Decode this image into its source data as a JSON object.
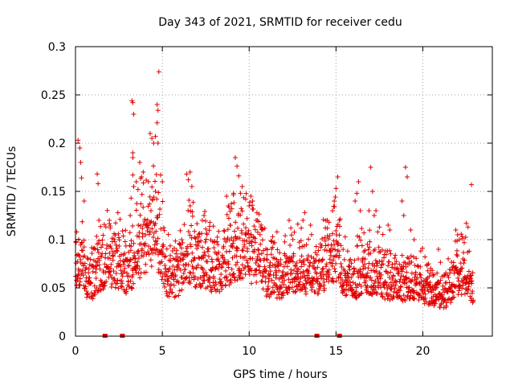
{
  "chart_data": {
    "type": "scatter",
    "title": "Day 343 of 2021, SRMTID for receiver cedu",
    "xlabel": "GPS time / hours",
    "ylabel": "SRMTID / TECUs",
    "xlim": [
      0,
      24
    ],
    "ylim": [
      0,
      0.3
    ],
    "x_ticks": [
      0,
      5,
      10,
      15,
      20
    ],
    "x_tick_labels": [
      "0",
      "5",
      "10",
      "15",
      "20"
    ],
    "y_ticks": [
      0,
      0.05,
      0.1,
      0.15,
      0.2,
      0.25,
      0.3
    ],
    "y_tick_labels": [
      "0",
      "0.05",
      "0.1",
      "0.15",
      "0.2",
      "0.25",
      "0.3"
    ],
    "grid": true,
    "marker": "+",
    "series_color": "#e00000",
    "gap_marker_times": [
      1.7,
      2.7,
      13.9,
      15.2
    ],
    "trend": [
      [
        0.0,
        0.07
      ],
      [
        0.3,
        0.078
      ],
      [
        0.6,
        0.065
      ],
      [
        1.0,
        0.06
      ],
      [
        1.4,
        0.075
      ],
      [
        2.0,
        0.08
      ],
      [
        2.5,
        0.078
      ],
      [
        3.0,
        0.07
      ],
      [
        3.5,
        0.088
      ],
      [
        4.0,
        0.105
      ],
      [
        4.5,
        0.11
      ],
      [
        4.9,
        0.1
      ],
      [
        5.3,
        0.065
      ],
      [
        5.9,
        0.065
      ],
      [
        6.4,
        0.09
      ],
      [
        6.9,
        0.082
      ],
      [
        7.5,
        0.078
      ],
      [
        8.0,
        0.07
      ],
      [
        8.5,
        0.075
      ],
      [
        9.0,
        0.09
      ],
      [
        9.5,
        0.092
      ],
      [
        10.0,
        0.09
      ],
      [
        10.6,
        0.08
      ],
      [
        11.0,
        0.065
      ],
      [
        11.6,
        0.06
      ],
      [
        12.2,
        0.068
      ],
      [
        12.8,
        0.07
      ],
      [
        13.3,
        0.07
      ],
      [
        13.9,
        0.067
      ],
      [
        14.5,
        0.08
      ],
      [
        15.0,
        0.09
      ],
      [
        15.5,
        0.065
      ],
      [
        16.0,
        0.06
      ],
      [
        16.5,
        0.07
      ],
      [
        17.0,
        0.068
      ],
      [
        17.6,
        0.062
      ],
      [
        18.2,
        0.06
      ],
      [
        18.8,
        0.058
      ],
      [
        19.3,
        0.06
      ],
      [
        19.8,
        0.055
      ],
      [
        20.3,
        0.052
      ],
      [
        20.8,
        0.048
      ],
      [
        21.3,
        0.045
      ],
      [
        21.8,
        0.06
      ],
      [
        22.2,
        0.07
      ],
      [
        22.6,
        0.06
      ],
      [
        22.9,
        0.055
      ]
    ],
    "spikes": [
      [
        0.15,
        0.203
      ],
      [
        0.25,
        0.195
      ],
      [
        0.3,
        0.18
      ],
      [
        0.35,
        0.164
      ],
      [
        0.5,
        0.14
      ],
      [
        1.25,
        0.168
      ],
      [
        1.3,
        0.158
      ],
      [
        1.35,
        0.12
      ],
      [
        1.95,
        0.12
      ],
      [
        2.0,
        0.112
      ],
      [
        3.2,
        0.143
      ],
      [
        3.3,
        0.167
      ],
      [
        3.35,
        0.155
      ],
      [
        3.15,
        0.125
      ],
      [
        3.25,
        0.244
      ],
      [
        3.3,
        0.242
      ],
      [
        3.35,
        0.23
      ],
      [
        3.3,
        0.19
      ],
      [
        3.3,
        0.185
      ],
      [
        3.5,
        0.16
      ],
      [
        3.6,
        0.152
      ],
      [
        3.8,
        0.165
      ],
      [
        3.9,
        0.17
      ],
      [
        3.7,
        0.18
      ],
      [
        4.3,
        0.21
      ],
      [
        4.4,
        0.205
      ],
      [
        4.5,
        0.2
      ],
      [
        4.6,
        0.207
      ],
      [
        4.7,
        0.24
      ],
      [
        4.75,
        0.234
      ],
      [
        4.7,
        0.221
      ],
      [
        4.8,
        0.274
      ],
      [
        4.75,
        0.2
      ],
      [
        4.9,
        0.167
      ],
      [
        5.0,
        0.16
      ],
      [
        4.6,
        0.15
      ],
      [
        4.2,
        0.16
      ],
      [
        6.4,
        0.168
      ],
      [
        6.5,
        0.162
      ],
      [
        6.6,
        0.17
      ],
      [
        6.7,
        0.155
      ],
      [
        6.6,
        0.135
      ],
      [
        7.3,
        0.12
      ],
      [
        7.4,
        0.125
      ],
      [
        7.5,
        0.111
      ],
      [
        8.7,
        0.145
      ],
      [
        8.8,
        0.135
      ],
      [
        8.9,
        0.115
      ],
      [
        9.0,
        0.132
      ],
      [
        9.1,
        0.148
      ],
      [
        9.2,
        0.185
      ],
      [
        9.3,
        0.176
      ],
      [
        9.4,
        0.166
      ],
      [
        9.5,
        0.148
      ],
      [
        9.6,
        0.155
      ],
      [
        9.8,
        0.142
      ],
      [
        10.0,
        0.135
      ],
      [
        10.1,
        0.145
      ],
      [
        10.2,
        0.14
      ],
      [
        10.4,
        0.12
      ],
      [
        11.6,
        0.108
      ],
      [
        12.3,
        0.12
      ],
      [
        12.4,
        0.112
      ],
      [
        12.8,
        0.116
      ],
      [
        13.0,
        0.112
      ],
      [
        13.1,
        0.12
      ],
      [
        13.2,
        0.128
      ],
      [
        14.5,
        0.12
      ],
      [
        14.6,
        0.118
      ],
      [
        14.8,
        0.13
      ],
      [
        14.9,
        0.14
      ],
      [
        15.0,
        0.153
      ],
      [
        15.1,
        0.165
      ],
      [
        15.2,
        0.12
      ],
      [
        16.1,
        0.14
      ],
      [
        16.2,
        0.148
      ],
      [
        16.3,
        0.16
      ],
      [
        16.4,
        0.13
      ],
      [
        16.9,
        0.13
      ],
      [
        17.0,
        0.175
      ],
      [
        17.1,
        0.15
      ],
      [
        17.2,
        0.125
      ],
      [
        17.3,
        0.13
      ],
      [
        17.5,
        0.113
      ],
      [
        18.0,
        0.115
      ],
      [
        18.1,
        0.11
      ],
      [
        18.8,
        0.14
      ],
      [
        18.9,
        0.125
      ],
      [
        19.0,
        0.175
      ],
      [
        19.1,
        0.165
      ],
      [
        19.3,
        0.11
      ],
      [
        19.5,
        0.1
      ],
      [
        20.9,
        0.09
      ],
      [
        21.9,
        0.11
      ],
      [
        22.0,
        0.105
      ],
      [
        22.1,
        0.1
      ],
      [
        22.5,
        0.117
      ],
      [
        22.6,
        0.113
      ],
      [
        22.8,
        0.157
      ]
    ]
  }
}
